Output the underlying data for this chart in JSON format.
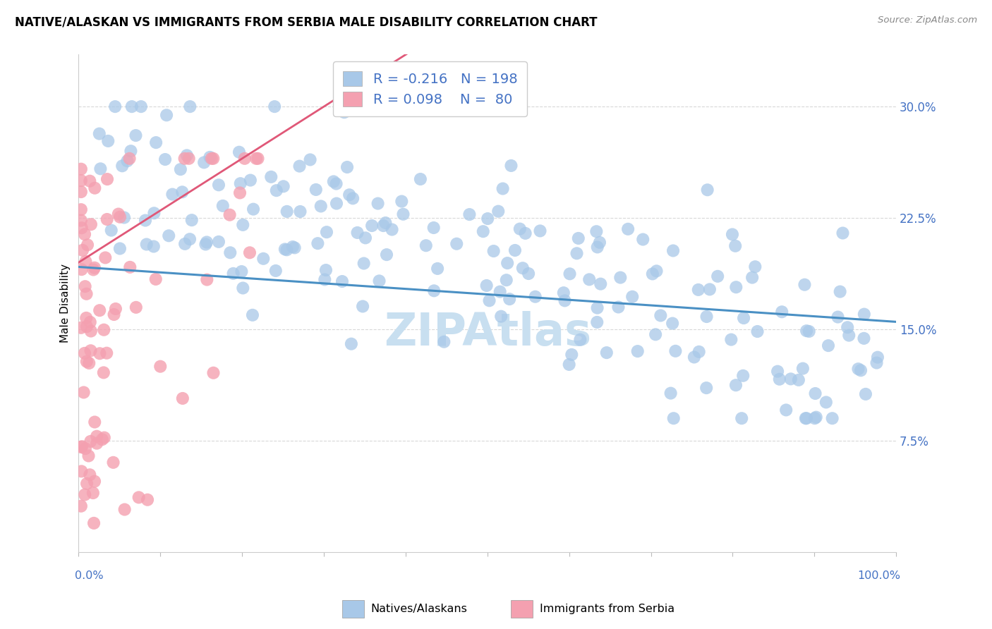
{
  "title": "NATIVE/ALASKAN VS IMMIGRANTS FROM SERBIA MALE DISABILITY CORRELATION CHART",
  "source": "Source: ZipAtlas.com",
  "ylabel": "Male Disability",
  "yticks": [
    0.0,
    0.075,
    0.15,
    0.225,
    0.3
  ],
  "ytick_labels": [
    "",
    "7.5%",
    "15.0%",
    "22.5%",
    "30.0%"
  ],
  "xrange": [
    0.0,
    1.0
  ],
  "yrange": [
    0.0,
    0.335
  ],
  "R_native": -0.216,
  "N_native": 198,
  "R_serbia": 0.098,
  "N_serbia": 80,
  "color_native": "#a8c8e8",
  "color_serbia": "#f4a0b0",
  "trendline_native_color": "#4a90c4",
  "trendline_serbia_color": "#e05878",
  "trendline_dashed_color": "#e8a0b0",
  "watermark_color": "#c8dff0",
  "background_color": "#ffffff",
  "title_fontsize": 12,
  "axis_label_color": "#4472c4",
  "legend_r_color": "#4472c4",
  "grid_color": "#d8d8d8"
}
